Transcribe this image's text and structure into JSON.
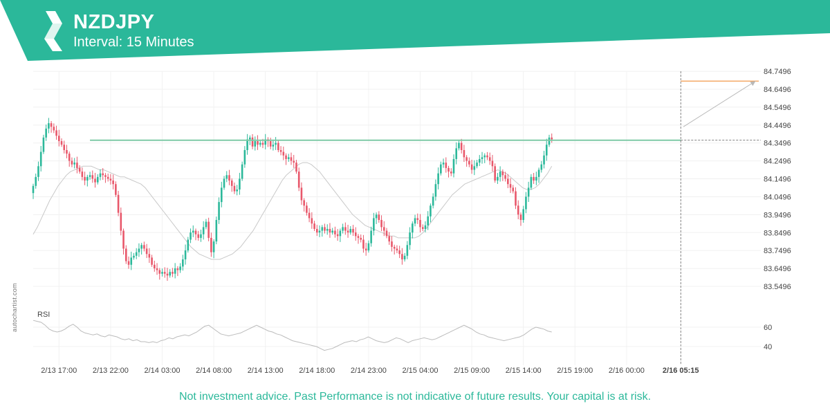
{
  "header": {
    "symbol": "NZDJPY",
    "interval": "Interval: 15 Minutes",
    "brand_color": "#2bb89a"
  },
  "watermark": "autochartist.com",
  "disclaimer": "Not investment advice. Past Performance is not indicative of future results. Your capital is at risk.",
  "chart_data": [
    {
      "type": "candlestick",
      "title": "NZDJPY",
      "subtitle": "Interval: 15 Minutes",
      "x_tick_labels": [
        "2/13 17:00",
        "2/13 22:00",
        "2/14 03:00",
        "2/14 08:00",
        "2/14 13:00",
        "2/14 18:00",
        "2/14 23:00",
        "2/15 04:00",
        "2/15 09:00",
        "2/15 14:00",
        "2/15 19:00",
        "2/16 00:00",
        "2/16 05:15"
      ],
      "x_tick_index": [
        10,
        30,
        50,
        70,
        90,
        110,
        130,
        150,
        170,
        190,
        210,
        230,
        251
      ],
      "y_ticks": [
        83.5496,
        83.6496,
        83.7496,
        83.8496,
        83.9496,
        84.0496,
        84.1496,
        84.2496,
        84.3496,
        84.4496,
        84.5496,
        84.6496,
        84.7496
      ],
      "ylim": [
        83.48,
        84.75
      ],
      "grid": true,
      "up_color": "#2bb89a",
      "down_color": "#e8576a",
      "support_resistance_level": 84.365,
      "breakout_index": 251,
      "breakout_close": 84.365,
      "forecast_target": 84.695,
      "forecast_start_index": 252,
      "forecast_end_index": 280,
      "ma_label": "",
      "close_values": [
        84.11,
        84.16,
        84.22,
        84.3,
        84.38,
        84.43,
        84.46,
        84.44,
        84.42,
        84.39,
        84.36,
        84.34,
        84.31,
        84.29,
        84.25,
        84.23,
        84.24,
        84.21,
        84.19,
        84.16,
        84.14,
        84.16,
        84.17,
        84.15,
        84.13,
        84.16,
        84.18,
        84.17,
        84.16,
        84.15,
        84.14,
        84.12,
        84.06,
        83.96,
        83.86,
        83.76,
        83.69,
        83.67,
        83.71,
        83.72,
        83.74,
        83.76,
        83.78,
        83.76,
        83.73,
        83.71,
        83.67,
        83.65,
        83.64,
        83.62,
        83.63,
        83.62,
        83.61,
        83.63,
        83.62,
        83.65,
        83.64,
        83.66,
        83.7,
        83.75,
        83.81,
        83.85,
        83.86,
        83.84,
        83.82,
        83.84,
        83.88,
        83.91,
        83.82,
        83.74,
        83.8,
        83.92,
        84.02,
        84.1,
        84.15,
        84.17,
        84.14,
        84.11,
        84.08,
        84.09,
        84.15,
        84.23,
        84.31,
        84.37,
        84.38,
        84.33,
        84.36,
        84.34,
        84.35,
        84.34,
        84.37,
        84.36,
        84.33,
        84.34,
        84.35,
        84.31,
        84.3,
        84.28,
        84.26,
        84.27,
        84.25,
        84.24,
        84.19,
        84.1,
        84.03,
        84.0,
        83.96,
        83.93,
        83.9,
        83.87,
        83.85,
        83.86,
        83.88,
        83.86,
        83.87,
        83.85,
        83.86,
        83.84,
        83.83,
        83.86,
        83.88,
        83.86,
        83.85,
        83.87,
        83.85,
        83.83,
        83.82,
        83.81,
        83.76,
        83.75,
        83.79,
        83.86,
        83.93,
        83.95,
        83.92,
        83.88,
        83.86,
        83.83,
        83.8,
        83.77,
        83.76,
        83.75,
        83.73,
        83.7,
        83.72,
        83.78,
        83.85,
        83.9,
        83.93,
        83.92,
        83.88,
        83.87,
        83.89,
        83.94,
        84.0,
        84.05,
        84.12,
        84.18,
        84.23,
        84.24,
        84.21,
        84.19,
        84.18,
        84.26,
        84.32,
        84.35,
        84.31,
        84.27,
        84.25,
        84.23,
        84.2,
        84.22,
        84.24,
        84.26,
        84.27,
        84.28,
        84.27,
        84.25,
        84.22,
        84.14,
        84.16,
        84.19,
        84.17,
        84.15,
        84.12,
        84.1,
        84.08,
        84.0,
        83.95,
        83.92,
        83.98,
        84.05,
        84.1,
        84.16,
        84.14,
        84.16,
        84.2,
        84.23,
        84.28,
        84.34,
        84.38,
        84.37
      ],
      "ma_values": [
        83.84,
        83.88,
        83.93,
        83.98,
        84.03,
        84.07,
        84.11,
        84.14,
        84.17,
        84.19,
        84.2,
        84.21,
        84.22,
        84.22,
        84.22,
        84.21,
        84.2,
        84.2,
        84.19,
        84.18,
        84.17,
        84.16,
        84.16,
        84.15,
        84.14,
        84.13,
        84.12,
        84.1,
        84.07,
        84.04,
        84.01,
        83.98,
        83.95,
        83.92,
        83.89,
        83.86,
        83.83,
        83.8,
        83.77,
        83.75,
        83.73,
        83.72,
        83.71,
        83.7,
        83.7,
        83.7,
        83.71,
        83.72,
        83.73,
        83.75,
        83.77,
        83.8,
        83.83,
        83.86,
        83.9,
        83.94,
        83.98,
        84.02,
        84.06,
        84.1,
        84.14,
        84.17,
        84.19,
        84.21,
        84.23,
        84.24,
        84.24,
        84.23,
        84.21,
        84.19,
        84.16,
        84.13,
        84.1,
        84.07,
        84.04,
        84.01,
        83.98,
        83.95,
        83.93,
        83.91,
        83.89,
        83.88,
        83.87,
        83.86,
        83.85,
        83.84,
        83.83,
        83.83,
        83.82,
        83.82,
        83.82,
        83.82,
        83.82,
        83.83,
        83.85,
        83.88,
        83.91,
        83.94,
        83.97,
        84.0,
        84.03,
        84.06,
        84.08,
        84.1,
        84.12,
        84.13,
        84.14,
        84.15,
        84.16,
        84.17,
        84.18,
        84.19,
        84.2,
        84.19,
        84.18,
        84.16,
        84.14,
        84.12,
        84.1,
        84.09,
        84.09,
        84.1,
        84.12,
        84.15,
        84.18,
        84.22
      ]
    },
    {
      "type": "line",
      "title": "RSI",
      "y_ticks": [
        40,
        60
      ],
      "ylim": [
        30,
        75
      ],
      "values": [
        67,
        66,
        65,
        62,
        58,
        56,
        55,
        56,
        58,
        61,
        63,
        60,
        56,
        54,
        53,
        52,
        53,
        51,
        50,
        52,
        51,
        50,
        48,
        47,
        48,
        46,
        47,
        45,
        45,
        44,
        45,
        44,
        46,
        47,
        49,
        48,
        50,
        51,
        52,
        51,
        53,
        55,
        58,
        61,
        62,
        59,
        56,
        53,
        52,
        51,
        52,
        53,
        54,
        56,
        58,
        60,
        62,
        60,
        58,
        56,
        55,
        53,
        52,
        50,
        48,
        46,
        45,
        44,
        43,
        42,
        41,
        40,
        38,
        36,
        37,
        38,
        40,
        42,
        44,
        45,
        46,
        45,
        47,
        48,
        50,
        48,
        46,
        45,
        44,
        45,
        47,
        49,
        48,
        46,
        44,
        46,
        47,
        48,
        49,
        48,
        47,
        48,
        50,
        52,
        54,
        56,
        58,
        60,
        62,
        60,
        58,
        55,
        53,
        52,
        50,
        49,
        48,
        47,
        46,
        47,
        48,
        49,
        50,
        52,
        55,
        58,
        60,
        59,
        58,
        56,
        55
      ]
    }
  ]
}
